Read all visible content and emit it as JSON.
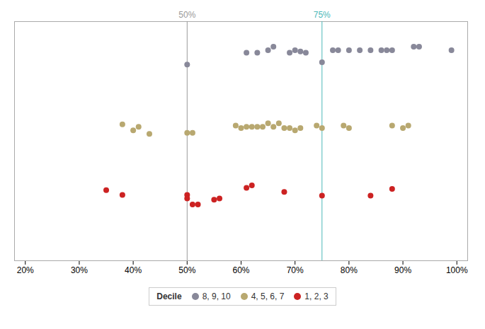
{
  "chart_data": {
    "type": "scatter",
    "xlim": [
      0.18,
      1.02
    ],
    "xticks": [
      {
        "value": 0.2,
        "label": "20%"
      },
      {
        "value": 0.3,
        "label": "30%"
      },
      {
        "value": 0.4,
        "label": "40%"
      },
      {
        "value": 0.5,
        "label": "50%"
      },
      {
        "value": 0.6,
        "label": "60%"
      },
      {
        "value": 0.7,
        "label": "70%"
      },
      {
        "value": 0.8,
        "label": "80%"
      },
      {
        "value": 0.9,
        "label": "90%"
      },
      {
        "value": 1.0,
        "label": "100%"
      }
    ],
    "ylim": [
      0,
      1
    ],
    "tick_labels": "x",
    "grid": false,
    "legend": "bottom",
    "legend_title": "Decile",
    "annotations": [
      {
        "x": 0.5,
        "text": "50%",
        "color": "#999999"
      },
      {
        "x": 0.75,
        "text": "75%",
        "color": "#4db8b8"
      }
    ],
    "series": [
      {
        "name": "8, 9, 10",
        "color": "#888899",
        "marker": "circle",
        "x": [
          0.5,
          0.61,
          0.63,
          0.65,
          0.66,
          0.69,
          0.7,
          0.71,
          0.72,
          0.75,
          0.77,
          0.78,
          0.8,
          0.82,
          0.84,
          0.86,
          0.87,
          0.88,
          0.92,
          0.93,
          0.99
        ],
        "y": [
          0.82,
          0.87,
          0.87,
          0.88,
          0.895,
          0.87,
          0.88,
          0.875,
          0.87,
          0.83,
          0.88,
          0.88,
          0.88,
          0.88,
          0.88,
          0.88,
          0.88,
          0.88,
          0.895,
          0.895,
          0.88
        ]
      },
      {
        "name": "4, 5, 6, 7",
        "color": "#b8a870",
        "marker": "circle",
        "x": [
          0.38,
          0.4,
          0.41,
          0.43,
          0.5,
          0.51,
          0.59,
          0.6,
          0.61,
          0.62,
          0.63,
          0.64,
          0.65,
          0.66,
          0.67,
          0.68,
          0.69,
          0.7,
          0.71,
          0.74,
          0.75,
          0.79,
          0.8,
          0.88,
          0.9,
          0.91
        ],
        "y": [
          0.57,
          0.545,
          0.56,
          0.53,
          0.535,
          0.535,
          0.565,
          0.555,
          0.56,
          0.56,
          0.56,
          0.56,
          0.575,
          0.56,
          0.575,
          0.555,
          0.555,
          0.545,
          0.555,
          0.565,
          0.555,
          0.565,
          0.555,
          0.565,
          0.555,
          0.565
        ]
      },
      {
        "name": "1, 2, 3",
        "color": "#cc2222",
        "marker": "circle",
        "x": [
          0.35,
          0.38,
          0.5,
          0.5,
          0.51,
          0.52,
          0.55,
          0.56,
          0.61,
          0.62,
          0.68,
          0.75,
          0.84,
          0.88
        ],
        "y": [
          0.295,
          0.275,
          0.275,
          0.26,
          0.235,
          0.235,
          0.255,
          0.26,
          0.305,
          0.315,
          0.288,
          0.272,
          0.272,
          0.3
        ]
      }
    ]
  }
}
